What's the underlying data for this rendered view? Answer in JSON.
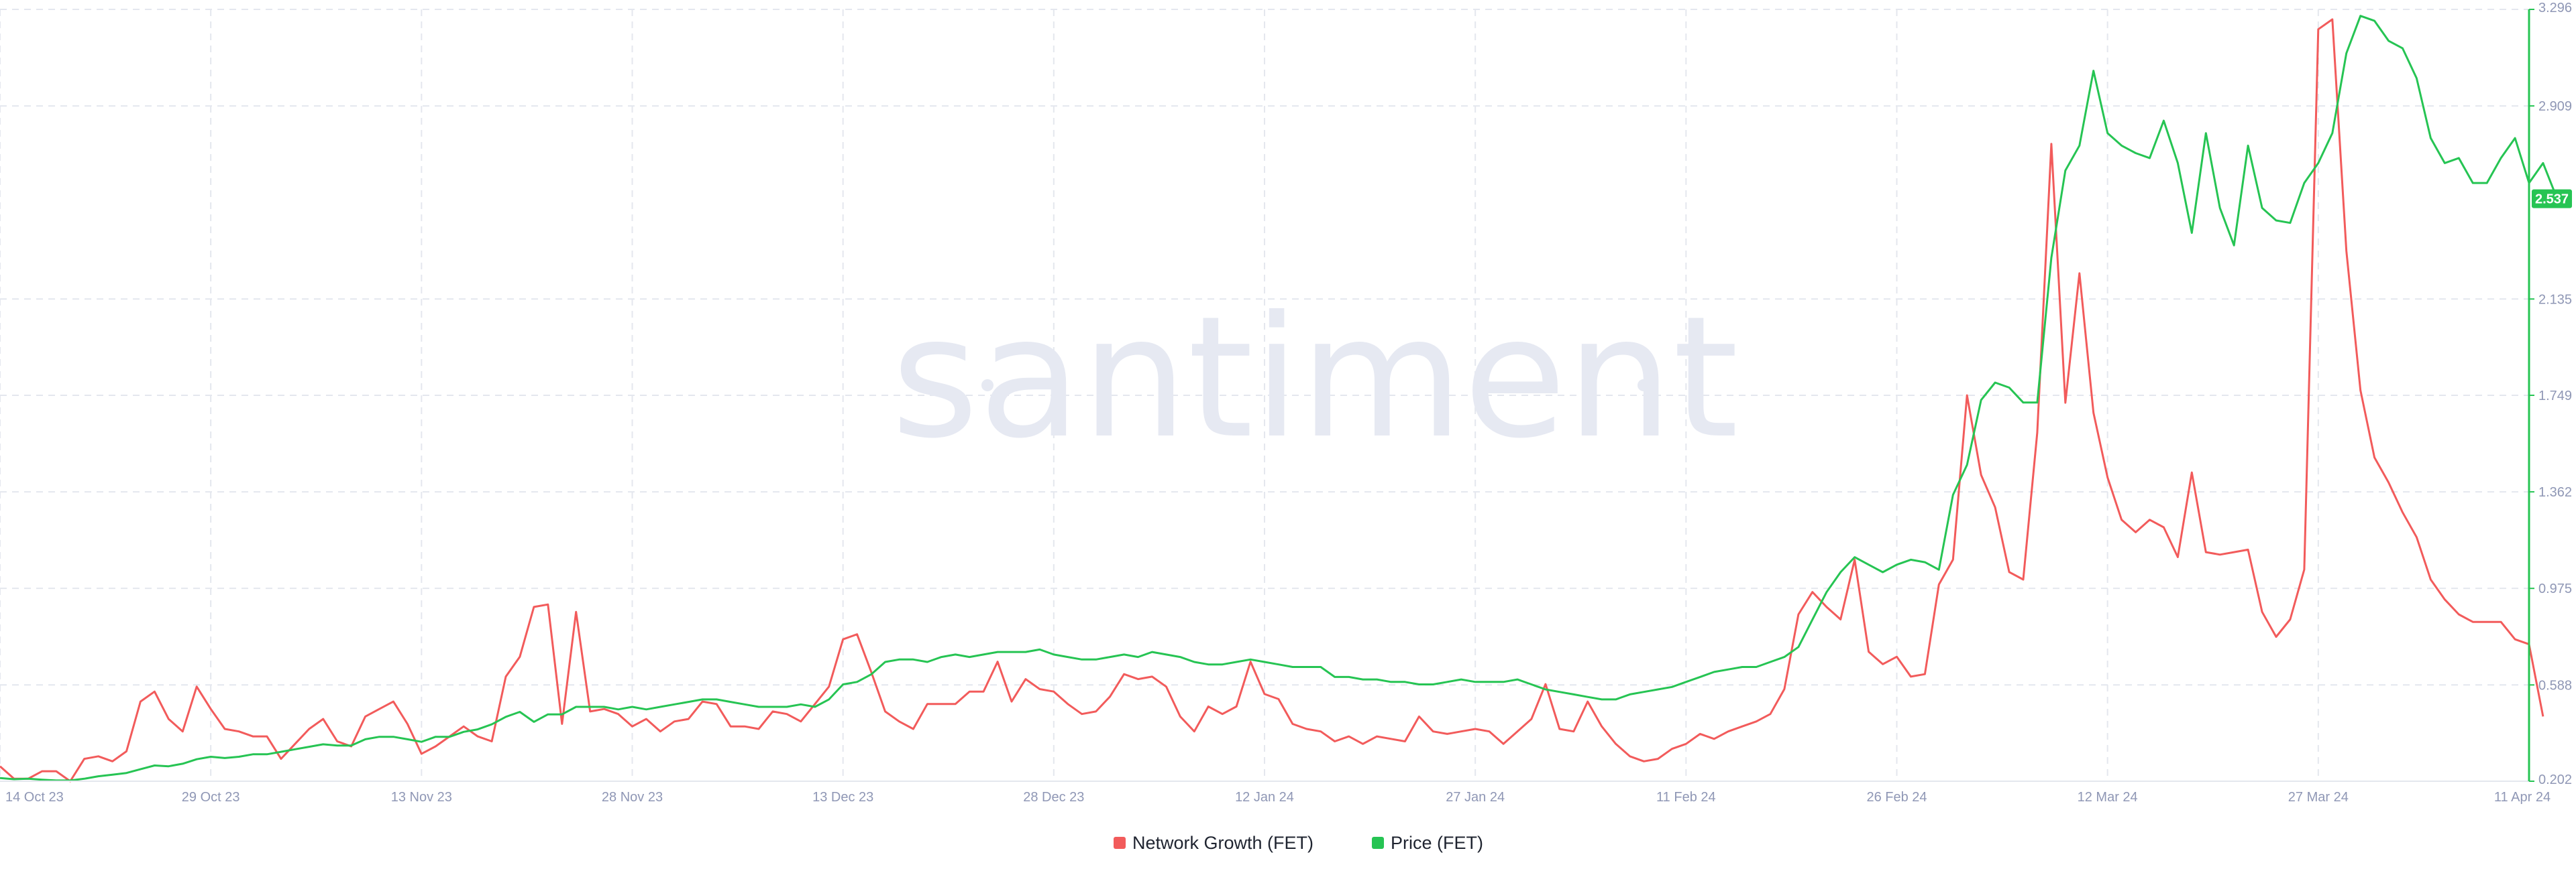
{
  "watermark": "santiment",
  "colors": {
    "network_growth": "#f25b5b",
    "price": "#26c453",
    "grid": "#e4e7ee",
    "axis_text": "#8f97b5"
  },
  "chart_data": {
    "type": "line",
    "title": "",
    "xlabel": "",
    "ylabel": "",
    "x_tick_labels": [
      "14 Oct 23",
      "29 Oct 23",
      "13 Nov 23",
      "28 Nov 23",
      "13 Dec 23",
      "28 Dec 23",
      "12 Jan 24",
      "27 Jan 24",
      "11 Feb 24",
      "26 Feb 24",
      "12 Mar 24",
      "27 Mar 24",
      "11 Apr 24"
    ],
    "x_range_days": [
      0,
      180
    ],
    "y_axis": {
      "position": "right",
      "ticks": [
        "0.202",
        "0.588",
        "0.975",
        "1.362",
        "1.749",
        "2.135",
        "2.909",
        "3.296"
      ],
      "ylim": [
        0.202,
        3.296
      ],
      "current_value_label": "2.537"
    },
    "grid": true,
    "legend": "bottom-center",
    "series": [
      {
        "name": "Network Growth (FET)",
        "axis": "hidden",
        "color": "#f25b5b",
        "x_step_days": 1,
        "values": [
          0.26,
          0.21,
          0.21,
          0.24,
          0.24,
          0.2,
          0.29,
          0.3,
          0.28,
          0.32,
          0.52,
          0.56,
          0.45,
          0.4,
          0.58,
          0.49,
          0.41,
          0.4,
          0.38,
          0.38,
          0.29,
          0.35,
          0.41,
          0.45,
          0.36,
          0.34,
          0.46,
          0.49,
          0.52,
          0.43,
          0.31,
          0.34,
          0.38,
          0.42,
          0.38,
          0.36,
          0.62,
          0.7,
          0.9,
          0.91,
          0.43,
          0.88,
          0.48,
          0.49,
          0.47,
          0.42,
          0.45,
          0.4,
          0.44,
          0.45,
          0.52,
          0.51,
          0.42,
          0.42,
          0.41,
          0.48,
          0.47,
          0.44,
          0.51,
          0.58,
          0.77,
          0.79,
          0.64,
          0.48,
          0.44,
          0.41,
          0.51,
          0.51,
          0.51,
          0.56,
          0.56,
          0.68,
          0.52,
          0.61,
          0.57,
          0.56,
          0.51,
          0.47,
          0.48,
          0.54,
          0.63,
          0.61,
          0.62,
          0.58,
          0.46,
          0.4,
          0.5,
          0.47,
          0.5,
          0.68,
          0.55,
          0.53,
          0.43,
          0.41,
          0.4,
          0.36,
          0.38,
          0.35,
          0.38,
          0.37,
          0.36,
          0.46,
          0.4,
          0.39,
          0.4,
          0.41,
          0.4,
          0.35,
          0.4,
          0.45,
          0.59,
          0.41,
          0.4,
          0.52,
          0.42,
          0.35,
          0.3,
          0.28,
          0.29,
          0.33,
          0.35,
          0.39,
          0.37,
          0.4,
          0.42,
          0.44,
          0.47,
          0.57,
          0.87,
          0.96,
          0.9,
          0.85,
          1.09,
          0.72,
          0.67,
          0.7,
          0.62,
          0.63,
          0.99,
          1.09,
          1.75,
          1.43,
          1.3,
          1.04,
          1.01,
          1.6,
          2.76,
          1.72,
          2.24,
          1.68,
          1.42,
          1.25,
          1.2,
          1.25,
          1.22,
          1.1,
          1.44,
          1.12,
          1.11,
          1.12,
          1.13,
          0.88,
          0.78,
          0.85,
          1.05,
          3.22,
          3.26,
          2.33,
          1.77,
          1.5,
          1.4,
          1.28,
          1.18,
          1.01,
          0.93,
          0.87,
          0.84,
          0.84,
          0.84,
          0.77,
          0.75,
          0.46
        ]
      },
      {
        "name": "Price (FET)",
        "axis": "right",
        "color": "#26c453",
        "x_step_days": 1,
        "values": [
          0.215,
          0.21,
          0.212,
          0.208,
          0.205,
          0.205,
          0.212,
          0.222,
          0.228,
          0.235,
          0.25,
          0.265,
          0.262,
          0.272,
          0.29,
          0.3,
          0.295,
          0.3,
          0.31,
          0.31,
          0.32,
          0.33,
          0.34,
          0.35,
          0.345,
          0.345,
          0.37,
          0.38,
          0.38,
          0.37,
          0.36,
          0.38,
          0.38,
          0.4,
          0.41,
          0.43,
          0.46,
          0.48,
          0.44,
          0.47,
          0.47,
          0.5,
          0.5,
          0.5,
          0.49,
          0.5,
          0.49,
          0.5,
          0.51,
          0.52,
          0.53,
          0.53,
          0.52,
          0.51,
          0.5,
          0.5,
          0.5,
          0.51,
          0.5,
          0.53,
          0.59,
          0.6,
          0.63,
          0.68,
          0.69,
          0.69,
          0.68,
          0.7,
          0.71,
          0.7,
          0.71,
          0.72,
          0.72,
          0.72,
          0.73,
          0.71,
          0.7,
          0.69,
          0.69,
          0.7,
          0.71,
          0.7,
          0.72,
          0.71,
          0.7,
          0.68,
          0.67,
          0.67,
          0.68,
          0.69,
          0.68,
          0.67,
          0.66,
          0.66,
          0.66,
          0.62,
          0.62,
          0.61,
          0.61,
          0.6,
          0.6,
          0.59,
          0.59,
          0.6,
          0.61,
          0.6,
          0.6,
          0.6,
          0.61,
          0.59,
          0.57,
          0.56,
          0.55,
          0.54,
          0.53,
          0.53,
          0.55,
          0.56,
          0.57,
          0.58,
          0.6,
          0.62,
          0.64,
          0.65,
          0.66,
          0.66,
          0.68,
          0.7,
          0.74,
          0.85,
          0.96,
          1.04,
          1.1,
          1.07,
          1.04,
          1.07,
          1.09,
          1.08,
          1.05,
          1.35,
          1.47,
          1.73,
          1.8,
          1.78,
          1.72,
          1.72,
          2.3,
          2.65,
          2.75,
          3.05,
          2.8,
          2.75,
          2.72,
          2.7,
          2.85,
          2.68,
          2.4,
          2.8,
          2.5,
          2.35,
          2.75,
          2.5,
          2.45,
          2.44,
          2.6,
          2.68,
          2.8,
          3.12,
          3.27,
          3.25,
          3.17,
          3.14,
          3.02,
          2.78,
          2.68,
          2.7,
          2.6,
          2.6,
          2.7,
          2.78,
          2.6,
          2.68,
          2.537
        ]
      }
    ]
  },
  "legend": {
    "items": [
      {
        "label": "Network Growth (FET)",
        "color": "#f25b5b"
      },
      {
        "label": "Price (FET)",
        "color": "#26c453"
      }
    ]
  }
}
